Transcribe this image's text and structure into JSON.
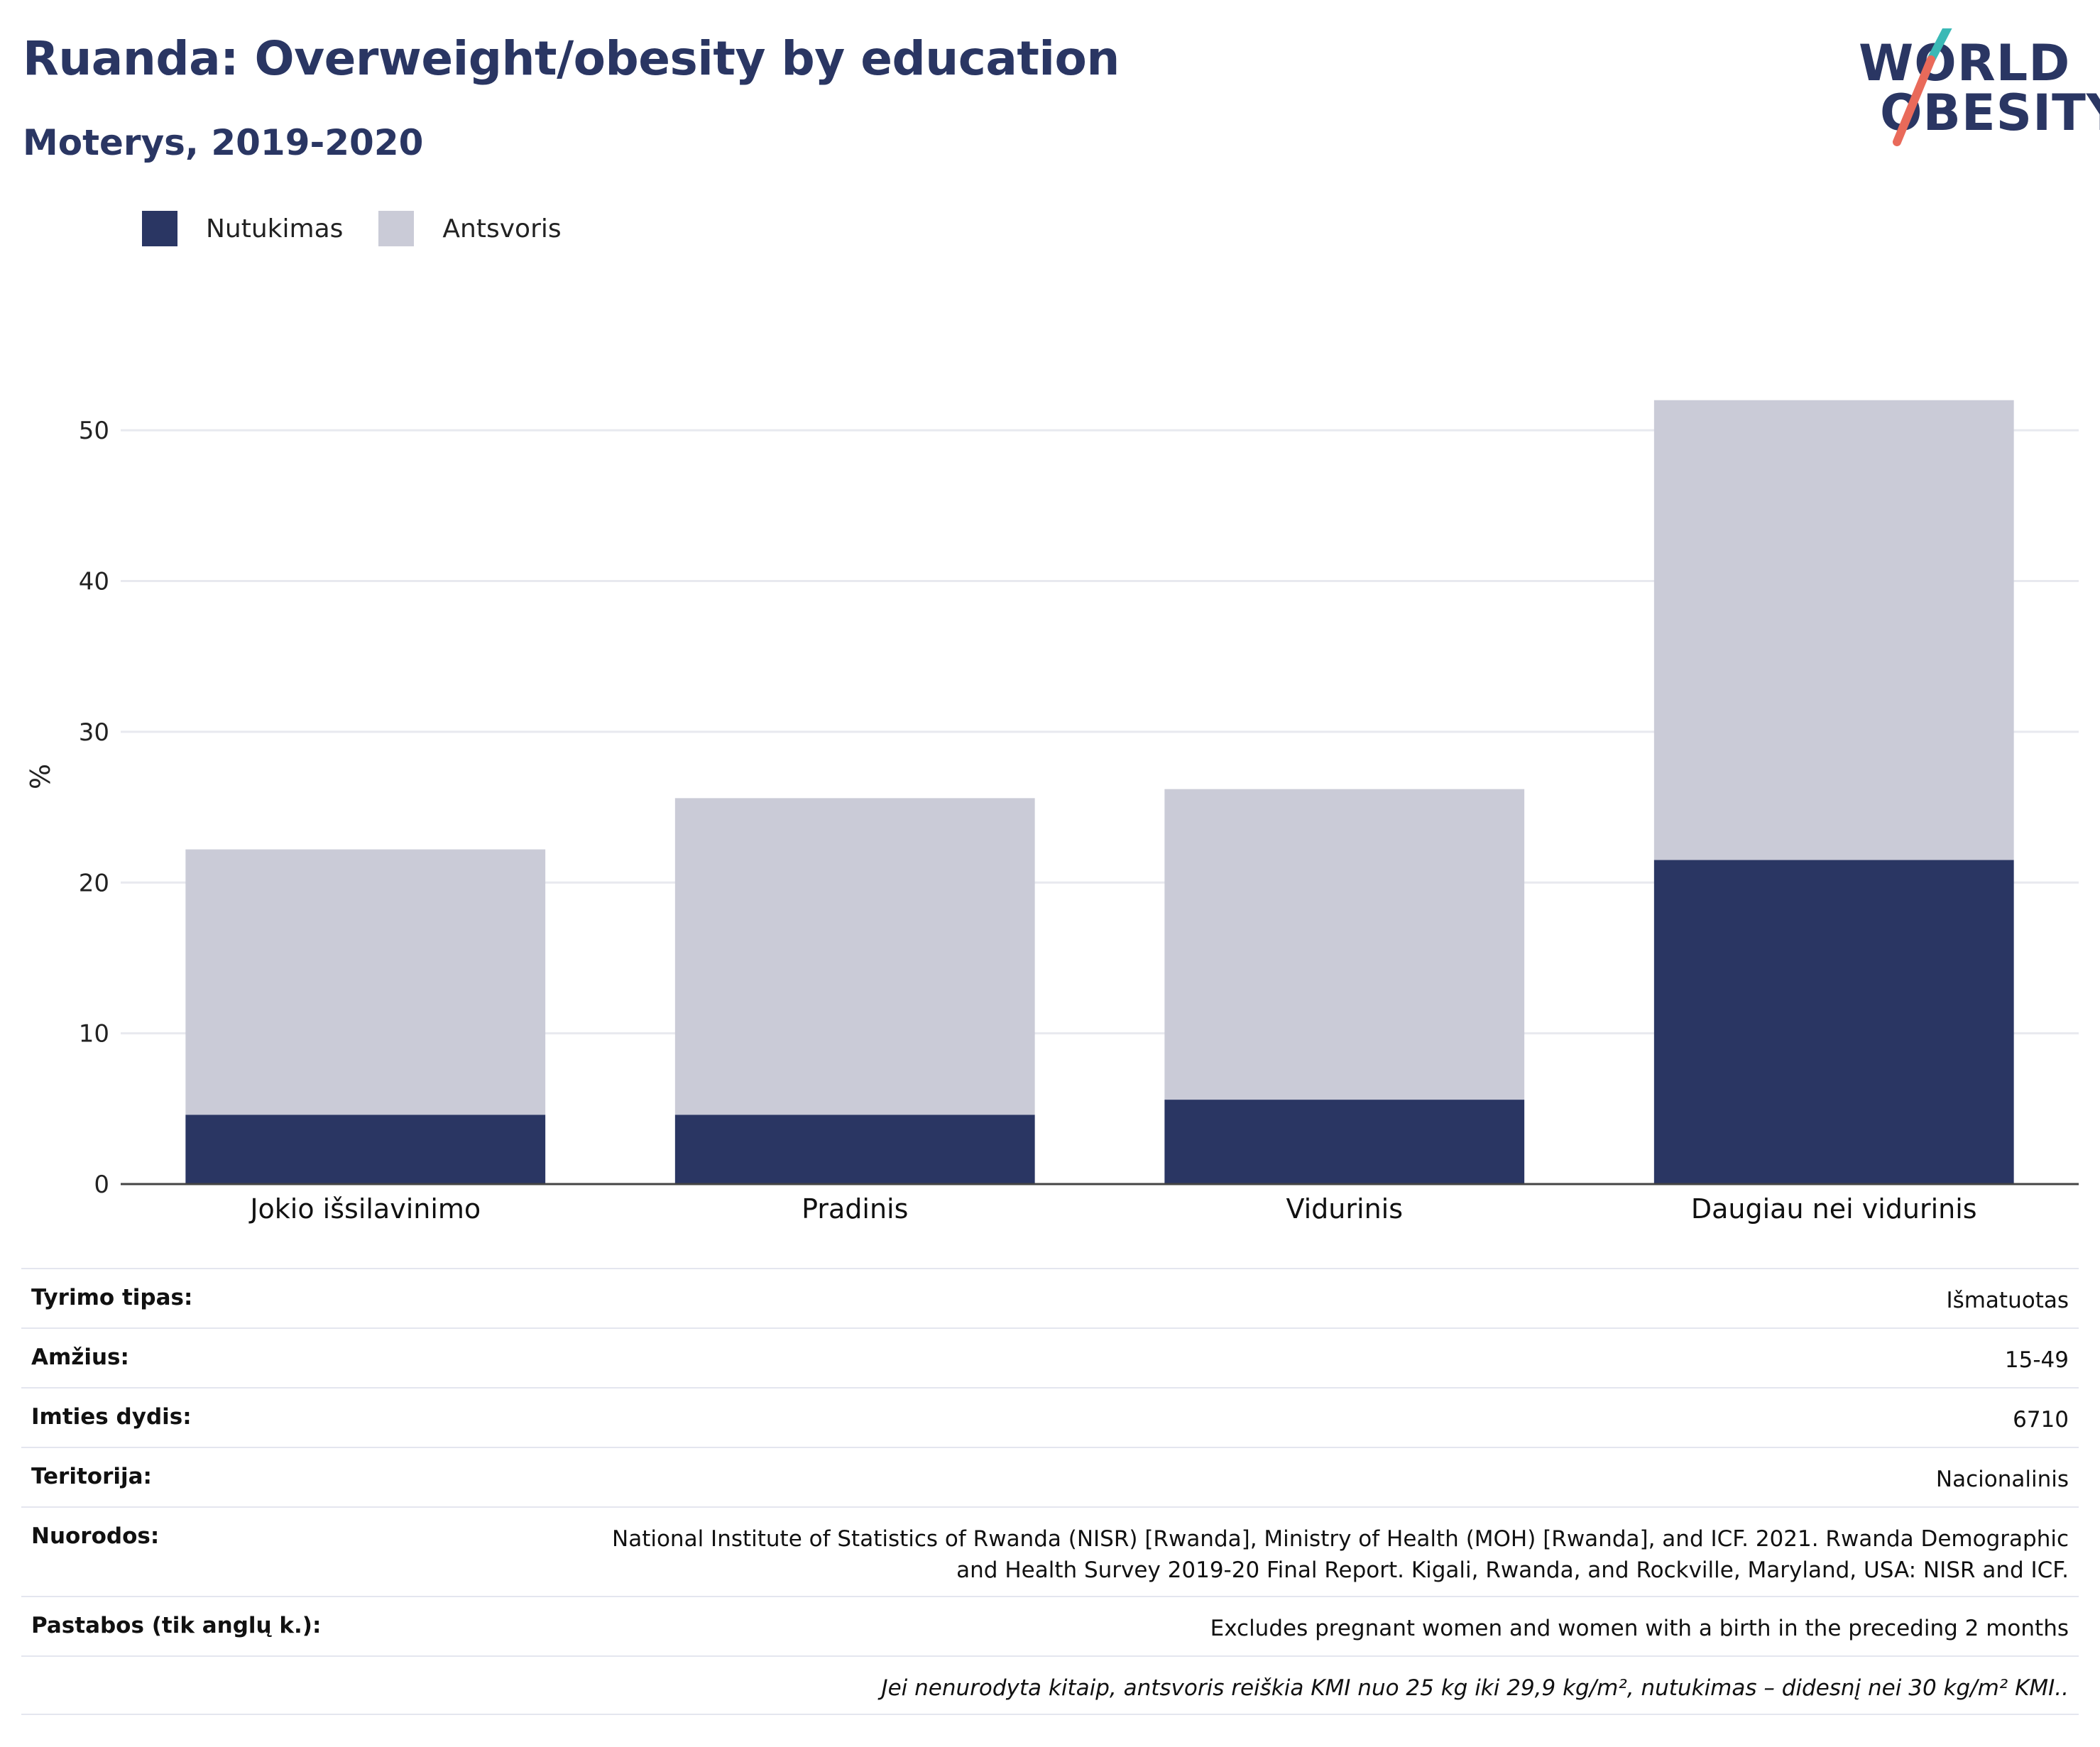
{
  "header": {
    "title": "Ruanda: Overweight/obesity by education",
    "subtitle": "Moterys, 2019-2020"
  },
  "logo": {
    "line1": "WORLD",
    "line2": "OBESITY",
    "accent_teal": "#3ab9b6",
    "accent_coral": "#e96a5a"
  },
  "legend": [
    {
      "label": "Nutukimas",
      "color": "#2a3663"
    },
    {
      "label": "Antsvoris",
      "color": "#cacbd7"
    }
  ],
  "chart_data": {
    "type": "bar",
    "stacked": true,
    "categories": [
      "Jokio išsilavinimo",
      "Pradinis",
      "Vidurinis",
      "Daugiau nei vidurinis"
    ],
    "series": [
      {
        "name": "Nutukimas",
        "color": "#2a3663",
        "values": [
          4.6,
          4.6,
          5.6,
          21.5
        ]
      },
      {
        "name": "Antsvoris",
        "color": "#cacbd7",
        "values": [
          17.6,
          21.0,
          20.6,
          30.5
        ]
      }
    ],
    "ylabel": "%",
    "ylim": [
      0,
      55
    ],
    "yticks": [
      0,
      10,
      20,
      30,
      40,
      50
    ],
    "grid": true,
    "legend_position": "top-left"
  },
  "info_table": {
    "rows": [
      {
        "key": "Tyrimo tipas:",
        "value": "Išmatuotas"
      },
      {
        "key": "Amžius:",
        "value": "15-49"
      },
      {
        "key": "Imties dydis:",
        "value": "6710"
      },
      {
        "key": "Teritorija:",
        "value": "Nacionalinis"
      },
      {
        "key": "Nuorodos:",
        "value_line1": "National Institute of Statistics of Rwanda (NISR) [Rwanda], Ministry of Health (MOH) [Rwanda], and ICF. 2021. Rwanda Demographic",
        "value_line2": "and Health Survey 2019-20 Final Report. Kigali, Rwanda, and Rockville, Maryland, USA: NISR and ICF."
      },
      {
        "key": "Pastabos (tik anglų k.):",
        "value": "Excludes pregnant women and women with a birth in the preceding 2 months"
      }
    ],
    "footnote": "Jei nenurodyta kitaip, antsvoris reiškia KMI nuo 25 kg iki 29,9 kg/m², nutukimas – didesnį nei 30 kg/m² KMI.."
  }
}
